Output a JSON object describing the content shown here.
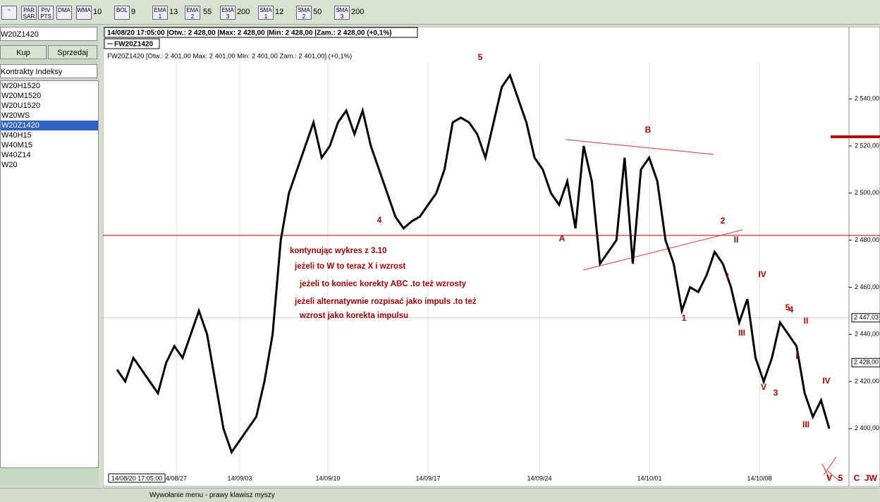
{
  "toolbar": {
    "buttons": [
      "PAR SAR",
      "PIV PTS",
      "DMA",
      "WMA",
      "10",
      "BOL",
      "9",
      "EMA 1",
      "13",
      "EMA 2",
      "55",
      "EMA 3",
      "200",
      "SMA 1",
      "12",
      "SMA 2",
      "50",
      "SMA 3",
      "200"
    ]
  },
  "sidebar": {
    "symbol": "W20Z1420",
    "buy": "Kup",
    "sell": "Sprzedaj",
    "group": "Kontrakty Indeksy",
    "instruments": [
      "W20H1520",
      "W20M1520",
      "W20U1520",
      "W20WS",
      "W20Z1420",
      "W40H15",
      "W40M15",
      "W40Z14",
      "W20"
    ],
    "selected": 4
  },
  "chart": {
    "type": "line",
    "header": "14/08/20 17:05:00 |Otw.: 2 428,00 |Max: 2 428,00 |Min: 2 428,00 |Zam.: 2 428,00 (+0,1%)",
    "info": "FW20Z1420 [Otw.: 2 401,00  Max: 2 401,00  Min: 2 401,00  Zam.: 2 401,00] (+0,1%)",
    "series": [
      {
        "name": "FW20Z1420",
        "color": "#000000",
        "values": [
          2425,
          2420,
          2430,
          2425,
          2420,
          2415,
          2428,
          2435,
          2430,
          2440,
          2450,
          2440,
          2420,
          2400,
          2390,
          2395,
          2400,
          2405,
          2420,
          2440,
          2480,
          2500,
          2510,
          2520,
          2530,
          2515,
          2520,
          2530,
          2535,
          2525,
          2535,
          2520,
          2510,
          2500,
          2490,
          2485,
          2488,
          2490,
          2495,
          2500,
          2510,
          2530,
          2532,
          2530,
          2525,
          2515,
          2530,
          2545,
          2550,
          2540,
          2530,
          2515,
          2510,
          2500,
          2495,
          2505,
          2485,
          2520,
          2505,
          2470,
          2475,
          2480,
          2515,
          2470,
          2510,
          2515,
          2505,
          2480,
          2470,
          2450,
          2460,
          2458,
          2465,
          2475,
          2470,
          2460,
          2445,
          2455,
          2430,
          2420,
          2430,
          2445,
          2440,
          2435,
          2415,
          2405,
          2412,
          2400
        ]
      }
    ],
    "ylim": [
      2382,
      2561
    ],
    "yticks": [
      {
        "value": 2540,
        "label": "2 540,00"
      },
      {
        "value": 2520,
        "label": "2 520,00"
      },
      {
        "value": 2500,
        "label": "2 500,00"
      },
      {
        "value": 2480,
        "label": "2 480,00"
      },
      {
        "value": 2460,
        "label": "2 460,00"
      },
      {
        "value": 2440,
        "label": "2 440,00"
      },
      {
        "value": 2420,
        "label": "2 420,00"
      },
      {
        "value": 2400,
        "label": "2 400,00"
      }
    ],
    "markers": [
      {
        "value": 2447.03,
        "label": "2 447,03"
      },
      {
        "value": 2428,
        "label": "2 428,00"
      }
    ],
    "hline": 2482,
    "x_labels": [
      "14/08/20 17:05:00",
      "4/08/27",
      "14/09/03",
      "14/09/10",
      "14/09/17",
      "14/09/24",
      "14/10/01",
      "14/10/08"
    ],
    "wave_labels": [
      "5",
      "4",
      "A",
      "B",
      "2",
      "II",
      "I",
      "IV",
      "1",
      "III",
      "5",
      "4",
      "II",
      "I",
      "V",
      "3",
      "IV",
      "III",
      "V",
      "5",
      "C",
      "JW"
    ],
    "comments": [
      "kontynując wykres z 3.10",
      "jeżeli to  W to teraz X     i wzrost",
      "jeżeli to koniec korekty ABC .to też wzrosty",
      "jeżeli alternatywnie rozpisać jako impuls .to też",
      "wzrost jako korekta impulsu"
    ]
  },
  "status": "Wywołanie menu - prawy klawisz myszy"
}
